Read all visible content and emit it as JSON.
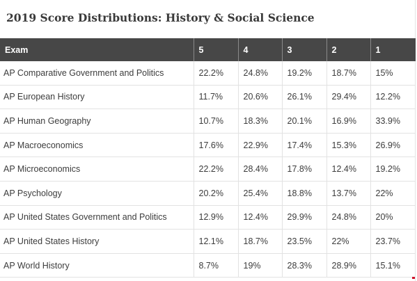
{
  "title": "2019 Score Distributions: History & Social Science",
  "table": {
    "headers": [
      "Exam",
      "5",
      "4",
      "3",
      "2",
      "1"
    ],
    "rows": [
      [
        "AP Comparative Government and Politics",
        "22.2%",
        "24.8%",
        "19.2%",
        "18.7%",
        "15%"
      ],
      [
        "AP European History",
        "11.7%",
        "20.6%",
        "26.1%",
        "29.4%",
        "12.2%"
      ],
      [
        "AP Human Geography",
        "10.7%",
        "18.3%",
        "20.1%",
        "16.9%",
        "33.9%"
      ],
      [
        "AP Macroeconomics",
        "17.6%",
        "22.9%",
        "17.4%",
        "15.3%",
        "26.9%"
      ],
      [
        "AP Microeconomics",
        "22.2%",
        "28.4%",
        "17.8%",
        "12.4%",
        "19.2%"
      ],
      [
        "AP Psychology",
        "20.2%",
        "25.4%",
        "18.8%",
        "13.7%",
        "22%"
      ],
      [
        "AP United States Government and Politics",
        "12.9%",
        "12.4%",
        "29.9%",
        "24.8%",
        "20%"
      ],
      [
        "AP United States History",
        "12.1%",
        "18.7%",
        "23.5%",
        "22%",
        "23.7%"
      ],
      [
        "AP World History",
        "8.7%",
        "19%",
        "28.3%",
        "28.9%",
        "15.1%"
      ]
    ]
  },
  "colors": {
    "header_background": "#474747",
    "header_text": "#ffffff",
    "cell_text": "#3c3c3c",
    "grid_line": "#e2e2e2"
  }
}
